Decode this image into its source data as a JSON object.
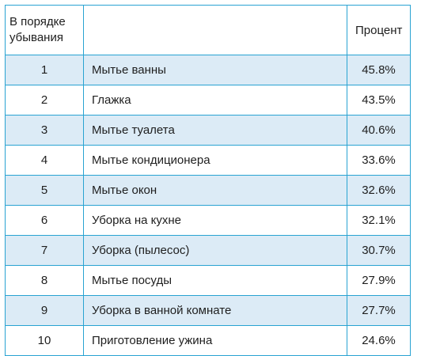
{
  "chart_data": {
    "type": "table",
    "columns": [
      "В порядке убывания",
      "",
      "Процент"
    ],
    "header": {
      "rank_line1": "В порядке",
      "rank_line2": "убывания",
      "task": "",
      "percent": "Процент"
    },
    "rows": [
      {
        "rank": "1",
        "task": "Мытье ванны",
        "percent": "45.8%",
        "value": 45.8
      },
      {
        "rank": "2",
        "task": "Глажка",
        "percent": "43.5%",
        "value": 43.5
      },
      {
        "rank": "3",
        "task": "Мытье туалета",
        "percent": "40.6%",
        "value": 40.6
      },
      {
        "rank": "4",
        "task": "Мытье кондиционера",
        "percent": "33.6%",
        "value": 33.6
      },
      {
        "rank": "5",
        "task": "Мытье окон",
        "percent": "32.6%",
        "value": 32.6
      },
      {
        "rank": "6",
        "task": "Уборка на кухне",
        "percent": "32.1%",
        "value": 32.1
      },
      {
        "rank": "7",
        "task": "Уборка (пылесос)",
        "percent": "30.7%",
        "value": 30.7
      },
      {
        "rank": "8",
        "task": "Мытье посуды",
        "percent": "27.9%",
        "value": 27.9
      },
      {
        "rank": "9",
        "task": "Уборка в ванной комнате",
        "percent": "27.7%",
        "value": 27.7
      },
      {
        "rank": "10",
        "task": "Приготовление ужина",
        "percent": "24.6%",
        "value": 24.6
      }
    ]
  },
  "colors": {
    "border": "#29a3d2",
    "shaded_row": "#dcebf6",
    "text": "#1e1e1e"
  }
}
